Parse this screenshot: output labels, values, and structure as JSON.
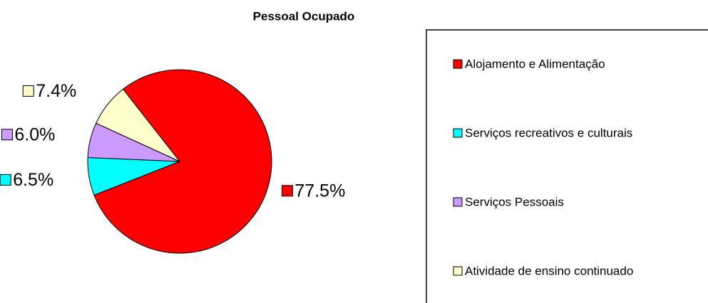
{
  "chart_data": {
    "type": "pie",
    "title": "Pessoal Ocupado",
    "categories": [
      "Alojamento e Alimentação",
      "Serviços recreativos e culturais",
      "Serviços Pessoais",
      "Atividade de ensino continuado"
    ],
    "values": [
      77.5,
      6.5,
      6.0,
      7.4
    ],
    "value_labels": [
      "77.5%",
      "6.5%",
      "6.0%",
      "7.4%"
    ],
    "colors": [
      "#ff0000",
      "#00ffff",
      "#cc99ff",
      "#ffffcc"
    ],
    "legend": "right"
  }
}
